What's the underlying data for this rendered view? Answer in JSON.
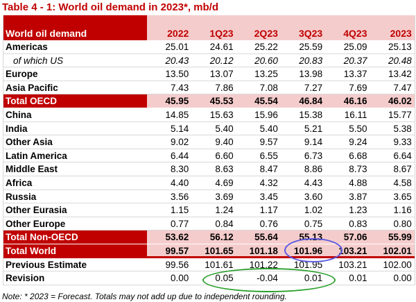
{
  "title": "Table 4 - 1: World oil demand in 2023*, mb/d",
  "header": {
    "label": "World oil demand",
    "columns": [
      "2022",
      "1Q23",
      "2Q23",
      "3Q23",
      "4Q23",
      "2023"
    ]
  },
  "rows": [
    {
      "label": "Americas",
      "values": [
        "25.01",
        "24.61",
        "25.22",
        "25.59",
        "25.09",
        "25.13"
      ],
      "style": "normal"
    },
    {
      "label": "of which US",
      "values": [
        "20.43",
        "20.12",
        "20.60",
        "20.83",
        "20.37",
        "20.48"
      ],
      "style": "sub"
    },
    {
      "label": "Europe",
      "values": [
        "13.50",
        "13.07",
        "13.25",
        "13.98",
        "13.37",
        "13.42"
      ],
      "style": "normal"
    },
    {
      "label": "Asia Pacific",
      "values": [
        "7.43",
        "7.86",
        "7.08",
        "7.27",
        "7.69",
        "7.47"
      ],
      "style": "normal"
    },
    {
      "label": "Total OECD",
      "values": [
        "45.95",
        "45.53",
        "45.54",
        "46.84",
        "46.16",
        "46.02"
      ],
      "style": "total"
    },
    {
      "label": "China",
      "values": [
        "14.85",
        "15.63",
        "15.96",
        "15.38",
        "16.11",
        "15.77"
      ],
      "style": "normal"
    },
    {
      "label": "India",
      "values": [
        "5.14",
        "5.40",
        "5.40",
        "5.21",
        "5.50",
        "5.38"
      ],
      "style": "normal"
    },
    {
      "label": "Other Asia",
      "values": [
        "9.02",
        "9.40",
        "9.57",
        "9.14",
        "9.24",
        "9.33"
      ],
      "style": "normal"
    },
    {
      "label": "Latin America",
      "values": [
        "6.44",
        "6.60",
        "6.55",
        "6.73",
        "6.68",
        "6.64"
      ],
      "style": "normal"
    },
    {
      "label": "Middle East",
      "values": [
        "8.30",
        "8.63",
        "8.47",
        "8.86",
        "8.73",
        "8.67"
      ],
      "style": "normal"
    },
    {
      "label": "Africa",
      "values": [
        "4.40",
        "4.69",
        "4.32",
        "4.43",
        "4.88",
        "4.58"
      ],
      "style": "normal"
    },
    {
      "label": "Russia",
      "values": [
        "3.56",
        "3.69",
        "3.45",
        "3.60",
        "3.87",
        "3.65"
      ],
      "style": "normal"
    },
    {
      "label": "Other Eurasia",
      "values": [
        "1.15",
        "1.24",
        "1.17",
        "1.02",
        "1.23",
        "1.16"
      ],
      "style": "normal"
    },
    {
      "label": "Other Europe",
      "values": [
        "0.77",
        "0.84",
        "0.76",
        "0.75",
        "0.83",
        "0.80"
      ],
      "style": "normal"
    },
    {
      "label": "Total Non-OECD",
      "values": [
        "53.62",
        "56.12",
        "55.64",
        "55.13",
        "57.06",
        "55.99"
      ],
      "style": "total"
    },
    {
      "label": "Total World",
      "values": [
        "99.57",
        "101.65",
        "101.18",
        "101.96",
        "103.21",
        "102.01"
      ],
      "style": "total-last"
    },
    {
      "label": "Previous Estimate",
      "values": [
        "99.56",
        "101.61",
        "101.22",
        "101.95",
        "103.21",
        "102.00"
      ],
      "style": "plain"
    },
    {
      "label": "Revision",
      "values": [
        "0.00",
        "0.05",
        "-0.04",
        "0.01",
        "0.01",
        "0.00"
      ],
      "style": "plain"
    }
  ],
  "note": "Note: * 2023 = Forecast. Totals may not add up due to independent rounding.",
  "colors": {
    "brand_red": "#c00000",
    "pink": "#f5cccc",
    "blue_oval": "#5a5ae0",
    "green_oval": "#2ca02c"
  }
}
